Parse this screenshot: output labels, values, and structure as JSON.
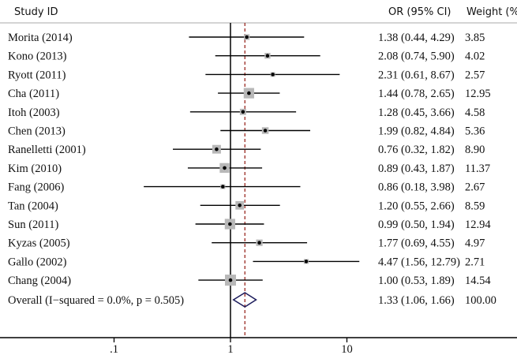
{
  "chart_data": {
    "type": "forest",
    "headers": {
      "study": "Study ID",
      "or": "OR (95% CI)",
      "weight": "Weight (%)"
    },
    "xscale": "log",
    "xticks": [
      {
        "value": 0.1,
        "label": ".1"
      },
      {
        "value": 1,
        "label": "1"
      },
      {
        "value": 10,
        "label": "10"
      }
    ],
    "xlim": [
      0.05,
      20
    ],
    "reference_line": 1,
    "studies": [
      {
        "label": "Morita (2014)",
        "or": 1.38,
        "lo": 0.44,
        "hi": 4.29,
        "ci_text": "1.38 (0.44, 4.29)",
        "weight": 3.85,
        "weight_text": "3.85"
      },
      {
        "label": "Kono (2013)",
        "or": 2.08,
        "lo": 0.74,
        "hi": 5.9,
        "ci_text": "2.08 (0.74, 5.90)",
        "weight": 4.02,
        "weight_text": "4.02"
      },
      {
        "label": "Ryott (2011)",
        "or": 2.31,
        "lo": 0.61,
        "hi": 8.67,
        "ci_text": "2.31 (0.61, 8.67)",
        "weight": 2.57,
        "weight_text": "2.57"
      },
      {
        "label": "Cha (2011)",
        "or": 1.44,
        "lo": 0.78,
        "hi": 2.65,
        "ci_text": "1.44 (0.78, 2.65)",
        "weight": 12.95,
        "weight_text": "12.95"
      },
      {
        "label": "Itoh (2003)",
        "or": 1.28,
        "lo": 0.45,
        "hi": 3.66,
        "ci_text": "1.28 (0.45, 3.66)",
        "weight": 4.58,
        "weight_text": "4.58"
      },
      {
        "label": "Chen (2013)",
        "or": 1.99,
        "lo": 0.82,
        "hi": 4.84,
        "ci_text": "1.99 (0.82, 4.84)",
        "weight": 5.36,
        "weight_text": "5.36"
      },
      {
        "label": "Ranelletti (2001)",
        "or": 0.76,
        "lo": 0.32,
        "hi": 1.82,
        "ci_text": "0.76 (0.32, 1.82)",
        "weight": 8.9,
        "weight_text": "8.90"
      },
      {
        "label": "Kim (2010)",
        "or": 0.89,
        "lo": 0.43,
        "hi": 1.87,
        "ci_text": "0.89 (0.43, 1.87)",
        "weight": 11.37,
        "weight_text": "11.37"
      },
      {
        "label": "Fang (2006)",
        "or": 0.86,
        "lo": 0.18,
        "hi": 3.98,
        "ci_text": "0.86 (0.18, 3.98)",
        "weight": 2.67,
        "weight_text": "2.67"
      },
      {
        "label": "Tan (2004)",
        "or": 1.2,
        "lo": 0.55,
        "hi": 2.66,
        "ci_text": "1.20 (0.55, 2.66)",
        "weight": 8.59,
        "weight_text": "8.59"
      },
      {
        "label": "Sun (2011)",
        "or": 0.99,
        "lo": 0.5,
        "hi": 1.94,
        "ci_text": "0.99 (0.50, 1.94)",
        "weight": 12.94,
        "weight_text": "12.94"
      },
      {
        "label": "Kyzas (2005)",
        "or": 1.77,
        "lo": 0.69,
        "hi": 4.55,
        "ci_text": "1.77 (0.69, 4.55)",
        "weight": 4.97,
        "weight_text": "4.97"
      },
      {
        "label": "Gallo (2002)",
        "or": 4.47,
        "lo": 1.56,
        "hi": 12.79,
        "ci_text": "4.47 (1.56, 12.79)",
        "weight": 2.71,
        "weight_text": "2.71"
      },
      {
        "label": "Chang (2004)",
        "or": 1.0,
        "lo": 0.53,
        "hi": 1.89,
        "ci_text": "1.00 (0.53, 1.89)",
        "weight": 14.54,
        "weight_text": "14.54"
      }
    ],
    "overall": {
      "label": "Overall  (I−squared = 0.0%, p = 0.505)",
      "or": 1.33,
      "lo": 1.06,
      "hi": 1.66,
      "ci_text": "1.33 (1.06, 1.66)",
      "weight_text": "100.00"
    },
    "colors": {
      "box": "#b8b8b8",
      "diamond": "#1c1c5c",
      "overall_line": "#9a2a22",
      "line": "#000000"
    }
  }
}
